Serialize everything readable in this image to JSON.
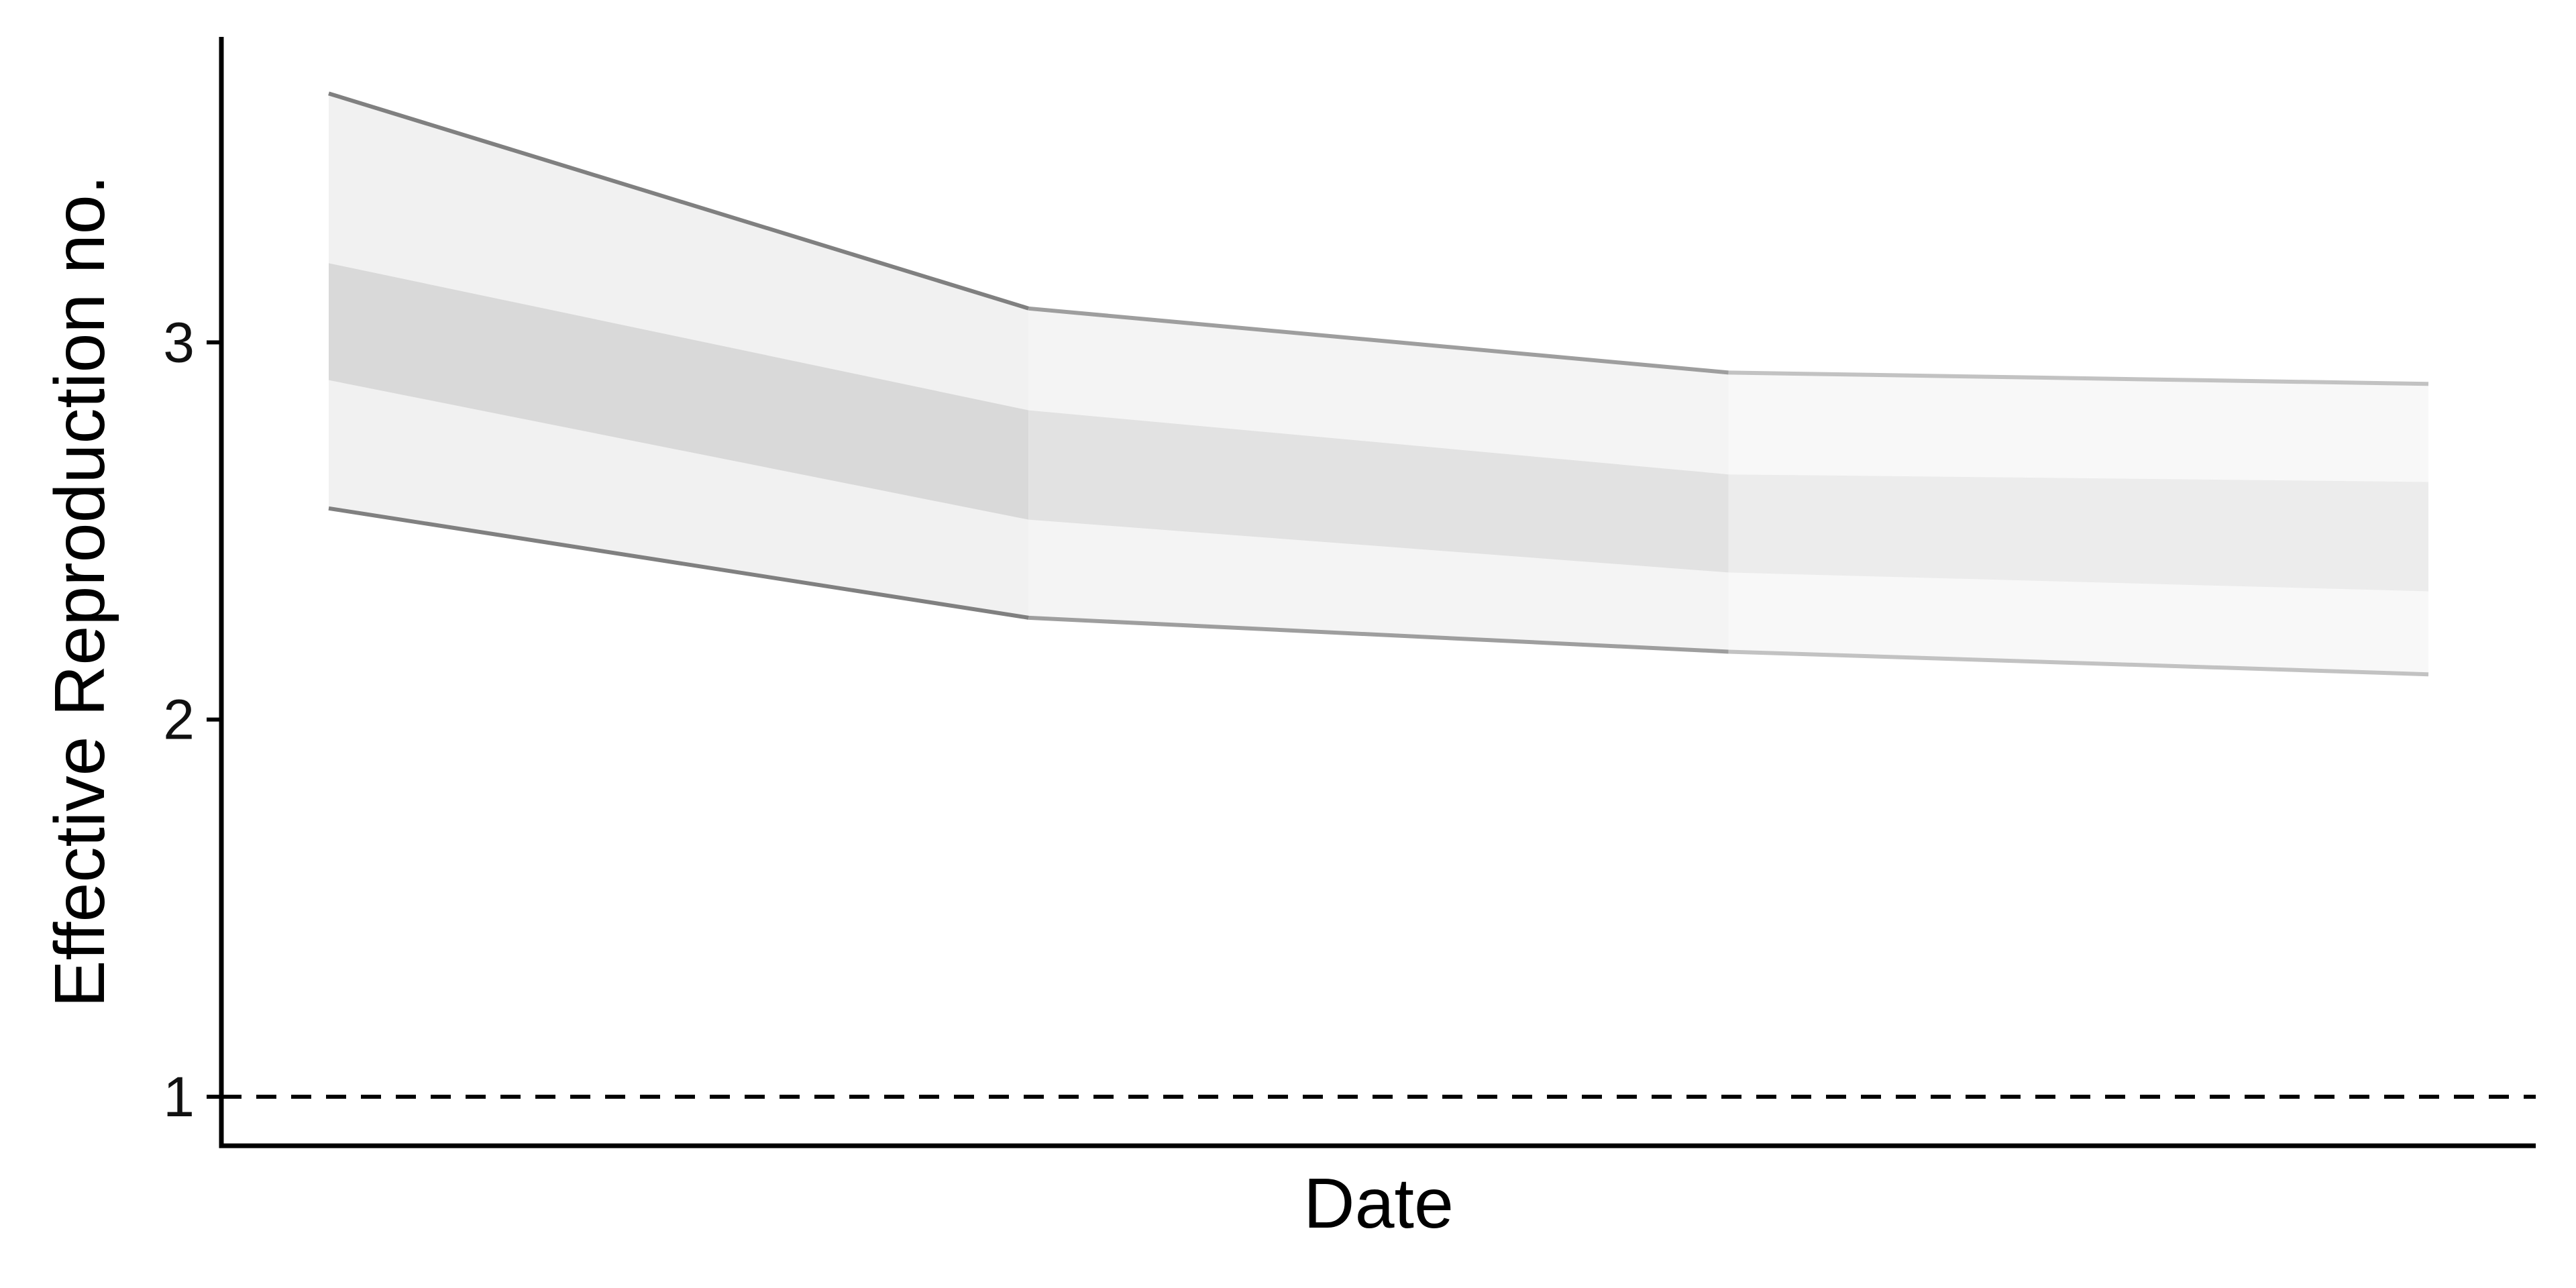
{
  "chart_data": {
    "type": "area",
    "title": "",
    "xlabel": "Date",
    "ylabel": "Effective Reproduction no.",
    "x": [
      1,
      2,
      3,
      4
    ],
    "ylim": [
      0.87,
      3.81
    ],
    "yticks": [
      1,
      2,
      3
    ],
    "ytick_labels": [
      "1",
      "2",
      "3"
    ],
    "grid": false,
    "legend": "none",
    "reference_line": {
      "y": 1,
      "style": "dashed"
    },
    "series": [
      {
        "band": "outer",
        "lower": [
          2.56,
          2.27,
          2.18,
          2.12
        ],
        "upper": [
          3.66,
          3.09,
          2.92,
          2.89
        ]
      },
      {
        "band": "inner",
        "lower": [
          2.9,
          2.53,
          2.39,
          2.34
        ],
        "upper": [
          3.21,
          2.82,
          2.65,
          2.63
        ]
      }
    ],
    "colors": {
      "outer_fill": [
        "#f1f1f1",
        "#f4f4f4",
        "#f8f8f8"
      ],
      "inner_fill": [
        "#d9d9d9",
        "#e2e2e2",
        "#ececec"
      ],
      "edge": [
        "#808080",
        "#9e9e9e",
        "#c2c2c2"
      ],
      "axis": "#000000"
    }
  }
}
